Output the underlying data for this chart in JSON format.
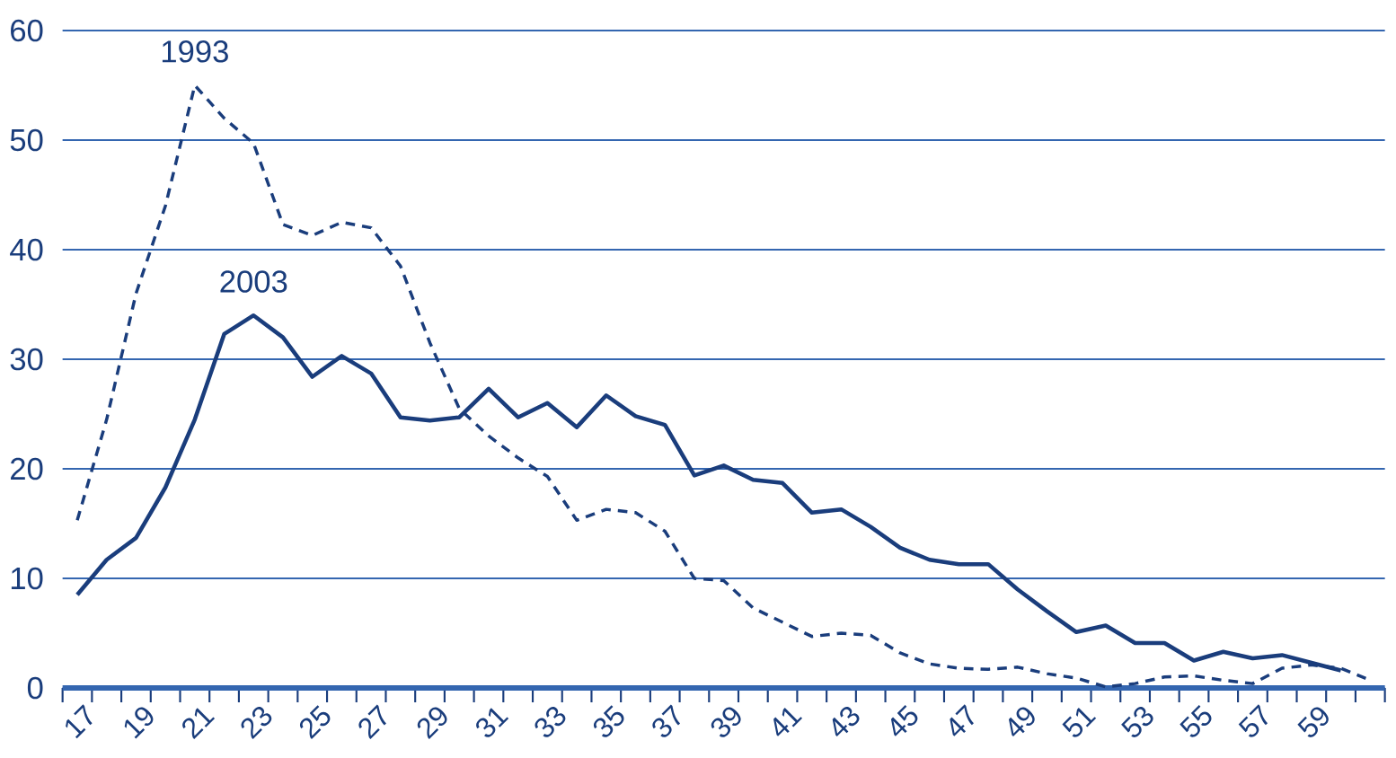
{
  "chart_data": {
    "type": "line",
    "categories": [
      "17",
      null,
      "19",
      null,
      "21",
      null,
      "23",
      null,
      "25",
      null,
      "27",
      null,
      "29",
      null,
      "31",
      null,
      "33",
      null,
      "35",
      null,
      "37",
      null,
      "39",
      null,
      "41",
      null,
      "43",
      null,
      "45",
      null,
      "47",
      null,
      "49",
      null,
      "51",
      null,
      "53",
      null,
      "55",
      null,
      "57",
      null,
      "59",
      null,
      null
    ],
    "series": [
      {
        "name": "1993",
        "color": "#1a3d7c",
        "line_style": "dashed",
        "values": [
          15.3,
          24.5,
          36,
          44,
          55,
          52,
          49.7,
          42.3,
          41.3,
          42.5,
          42,
          38.5,
          31.5,
          25.5,
          23,
          21,
          19.3,
          15.3,
          16.3,
          16,
          14.3,
          10,
          9.8,
          7.3,
          6,
          4.7,
          5,
          4.8,
          3.2,
          2.2,
          1.8,
          1.7,
          1.9,
          1.3,
          0.9,
          0.1,
          0.4,
          1,
          1.1,
          0.7,
          0.4,
          1.8,
          2.1,
          1.8,
          0.7
        ]
      },
      {
        "name": "2003",
        "color": "#1a3d7c",
        "line_style": "solid",
        "values": [
          8.5,
          11.7,
          13.7,
          18.3,
          24.5,
          32.3,
          34,
          32,
          28.4,
          30.3,
          28.7,
          24.7,
          24.4,
          24.7,
          27.3,
          24.7,
          26,
          23.8,
          26.7,
          24.8,
          24,
          19.4,
          20.3,
          19,
          18.7,
          16,
          16.3,
          14.7,
          12.8,
          11.7,
          11.3,
          11.3,
          9,
          7,
          5.1,
          5.7,
          4.1,
          4.1,
          2.5,
          3.3,
          2.7,
          3,
          2.3,
          1.6,
          null
        ]
      }
    ],
    "ylim": [
      0,
      60
    ],
    "yticks": [
      0,
      10,
      20,
      30,
      40,
      50,
      60
    ],
    "grid": "y",
    "legend": false,
    "marker": "none"
  }
}
